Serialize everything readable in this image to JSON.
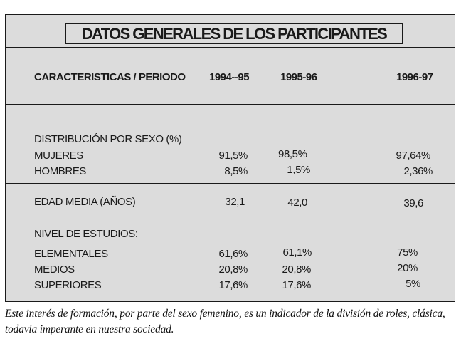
{
  "table": {
    "title": "DATOS GENERALES DE LOS PARTICIPANTES",
    "header": {
      "label": "CARACTERISTICAS / PERIODO",
      "periods": [
        "1994--95",
        "1995-96",
        "1996-97"
      ]
    },
    "sexo": {
      "heading": "DISTRIBUCIÓN POR SEXO (%)",
      "rows": [
        {
          "label": "MUJERES",
          "values": [
            "91,5%",
            "98,5%",
            "97,64%"
          ]
        },
        {
          "label": "HOMBRES",
          "values": [
            "8,5%",
            "1,5%",
            "2,36%"
          ]
        }
      ]
    },
    "edad": {
      "label": "EDAD MEDIA (AÑOS)",
      "values": [
        "32,1",
        "42,0",
        "39,6"
      ]
    },
    "estudios": {
      "heading": "NIVEL DE ESTUDIOS:",
      "rows": [
        {
          "label": "ELEMENTALES",
          "values": [
            "61,6%",
            "61,1%",
            "75%"
          ]
        },
        {
          "label": "MEDIOS",
          "values": [
            "20,8%",
            "20,8%",
            "20%"
          ]
        },
        {
          "label": "SUPERIORES",
          "values": [
            "17,6%",
            "17,6%",
            "5%"
          ]
        }
      ]
    }
  },
  "caption": "Este interés de formación, por parte del sexo femenino, es un indicador de la división de roles, clásica, todavía imperante en nuestra sociedad."
}
